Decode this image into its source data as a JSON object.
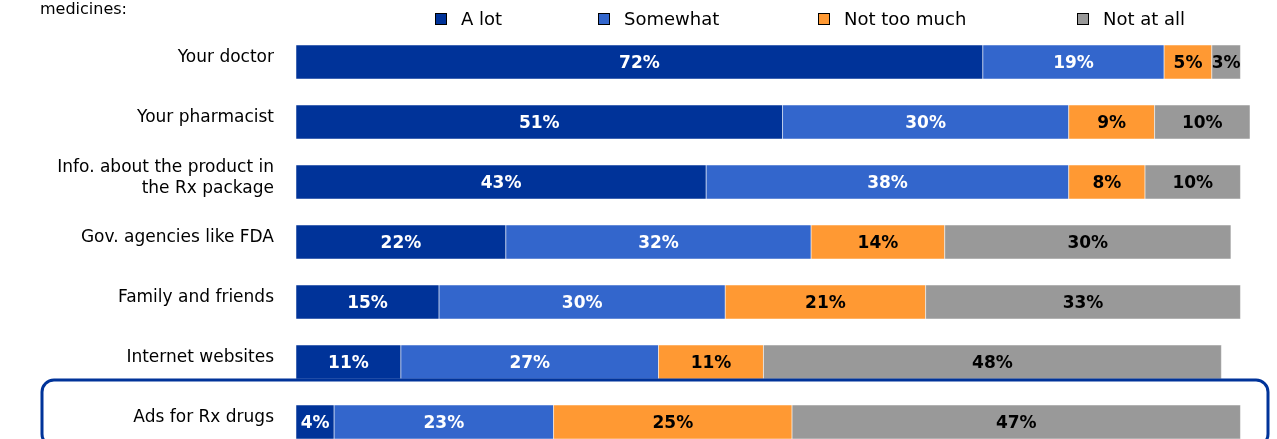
{
  "chart_data": {
    "type": "bar",
    "orientation": "horizontal",
    "stacked": true,
    "title": "medicines:",
    "categories": [
      "Your doctor",
      "Your pharmacist",
      "Info. about the product in the Rx package",
      "Gov. agencies like FDA",
      "Family and friends",
      "Internet websites",
      "Ads for Rx drugs"
    ],
    "series": [
      {
        "name": "A lot",
        "color": "#003399",
        "values": [
          72,
          51,
          43,
          22,
          15,
          11,
          4
        ],
        "value_labels": [
          "72%",
          "51%",
          "43%",
          "22%",
          "15%",
          "11%",
          "4%"
        ]
      },
      {
        "name": "Somewhat",
        "color": "#3366cc",
        "values": [
          19,
          30,
          38,
          32,
          30,
          27,
          23
        ],
        "value_labels": [
          "19%",
          "30%",
          "38%",
          "32%",
          "30%",
          "27%",
          "23%"
        ]
      },
      {
        "name": "Not too much",
        "color": "#ff9933",
        "values": [
          5,
          9,
          8,
          14,
          21,
          11,
          25
        ],
        "value_labels": [
          "5%",
          "9%",
          "8%",
          "14%",
          "21%",
          "11%",
          "25%"
        ]
      },
      {
        "name": "Not at all",
        "color": "#999999",
        "values": [
          3,
          10,
          10,
          30,
          33,
          48,
          47
        ],
        "value_labels": [
          "3%",
          "10%",
          "10%",
          "30%",
          "33%",
          "48%",
          "47%"
        ]
      }
    ],
    "legend": "top"
  }
}
